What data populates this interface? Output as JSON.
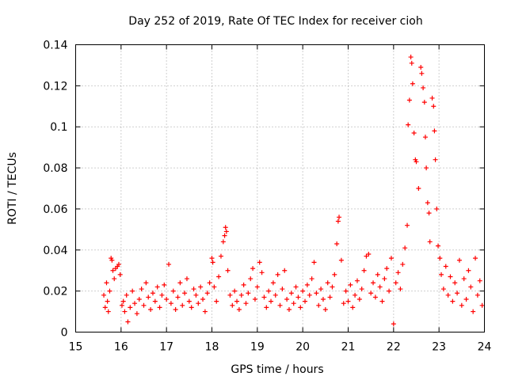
{
  "chart_data": {
    "type": "scatter",
    "title": "Day 252 of 2019, Rate Of TEC Index for receiver cioh",
    "xlabel": "GPS time / hours",
    "ylabel": "ROTI / TECUs",
    "xlim": [
      15,
      24
    ],
    "ylim": [
      0,
      0.14
    ],
    "x_ticks": [
      15,
      16,
      17,
      18,
      19,
      20,
      21,
      22,
      23,
      24
    ],
    "x_tick_labels": [
      "15",
      "16",
      "17",
      "18",
      "19",
      "20",
      "21",
      "22",
      "23",
      "24"
    ],
    "y_ticks": [
      0,
      0.02,
      0.04,
      0.06,
      0.08,
      0.1,
      0.12,
      0.14
    ],
    "y_tick_labels": [
      "0",
      "0.02",
      "0.04",
      "0.06",
      "0.08",
      "0.1",
      "0.12",
      "0.14"
    ],
    "grid": true,
    "marker": "+",
    "series_color": "#ff0000",
    "series": [
      {
        "name": "ROTI",
        "points": [
          [
            15.62,
            0.018
          ],
          [
            15.65,
            0.012
          ],
          [
            15.68,
            0.024
          ],
          [
            15.7,
            0.015
          ],
          [
            15.72,
            0.01
          ],
          [
            15.75,
            0.02
          ],
          [
            15.78,
            0.036
          ],
          [
            15.8,
            0.035
          ],
          [
            15.82,
            0.03
          ],
          [
            15.85,
            0.026
          ],
          [
            15.88,
            0.031
          ],
          [
            15.92,
            0.032
          ],
          [
            15.95,
            0.033
          ],
          [
            15.98,
            0.028
          ],
          [
            16.02,
            0.013
          ],
          [
            16.05,
            0.015
          ],
          [
            16.08,
            0.01
          ],
          [
            16.12,
            0.018
          ],
          [
            16.15,
            0.005
          ],
          [
            16.2,
            0.012
          ],
          [
            16.25,
            0.02
          ],
          [
            16.3,
            0.014
          ],
          [
            16.35,
            0.009
          ],
          [
            16.4,
            0.016
          ],
          [
            16.45,
            0.021
          ],
          [
            16.5,
            0.013
          ],
          [
            16.55,
            0.024
          ],
          [
            16.6,
            0.017
          ],
          [
            16.65,
            0.011
          ],
          [
            16.7,
            0.019
          ],
          [
            16.75,
            0.015
          ],
          [
            16.8,
            0.022
          ],
          [
            16.85,
            0.012
          ],
          [
            16.9,
            0.018
          ],
          [
            16.95,
            0.023
          ],
          [
            17.0,
            0.016
          ],
          [
            17.05,
            0.033
          ],
          [
            17.1,
            0.014
          ],
          [
            17.15,
            0.02
          ],
          [
            17.2,
            0.011
          ],
          [
            17.25,
            0.017
          ],
          [
            17.3,
            0.024
          ],
          [
            17.35,
            0.013
          ],
          [
            17.4,
            0.019
          ],
          [
            17.45,
            0.026
          ],
          [
            17.5,
            0.015
          ],
          [
            17.55,
            0.012
          ],
          [
            17.6,
            0.021
          ],
          [
            17.65,
            0.018
          ],
          [
            17.7,
            0.014
          ],
          [
            17.75,
            0.022
          ],
          [
            17.8,
            0.016
          ],
          [
            17.85,
            0.01
          ],
          [
            17.9,
            0.019
          ],
          [
            17.95,
            0.024
          ],
          [
            18.0,
            0.036
          ],
          [
            18.02,
            0.034
          ],
          [
            18.05,
            0.022
          ],
          [
            18.1,
            0.015
          ],
          [
            18.15,
            0.027
          ],
          [
            18.2,
            0.037
          ],
          [
            18.25,
            0.044
          ],
          [
            18.28,
            0.047
          ],
          [
            18.3,
            0.051
          ],
          [
            18.32,
            0.049
          ],
          [
            18.35,
            0.03
          ],
          [
            18.4,
            0.018
          ],
          [
            18.45,
            0.013
          ],
          [
            18.5,
            0.02
          ],
          [
            18.55,
            0.015
          ],
          [
            18.6,
            0.011
          ],
          [
            18.65,
            0.018
          ],
          [
            18.7,
            0.023
          ],
          [
            18.75,
            0.014
          ],
          [
            18.8,
            0.019
          ],
          [
            18.85,
            0.026
          ],
          [
            18.9,
            0.031
          ],
          [
            18.95,
            0.016
          ],
          [
            19.0,
            0.022
          ],
          [
            19.05,
            0.034
          ],
          [
            19.1,
            0.029
          ],
          [
            19.15,
            0.017
          ],
          [
            19.2,
            0.012
          ],
          [
            19.25,
            0.02
          ],
          [
            19.3,
            0.015
          ],
          [
            19.35,
            0.024
          ],
          [
            19.4,
            0.018
          ],
          [
            19.45,
            0.028
          ],
          [
            19.5,
            0.013
          ],
          [
            19.55,
            0.021
          ],
          [
            19.6,
            0.03
          ],
          [
            19.65,
            0.016
          ],
          [
            19.7,
            0.011
          ],
          [
            19.75,
            0.019
          ],
          [
            19.8,
            0.014
          ],
          [
            19.85,
            0.022
          ],
          [
            19.9,
            0.017
          ],
          [
            19.95,
            0.012
          ],
          [
            20.0,
            0.02
          ],
          [
            20.05,
            0.015
          ],
          [
            20.1,
            0.023
          ],
          [
            20.15,
            0.018
          ],
          [
            20.2,
            0.026
          ],
          [
            20.25,
            0.034
          ],
          [
            20.3,
            0.019
          ],
          [
            20.35,
            0.013
          ],
          [
            20.4,
            0.021
          ],
          [
            20.45,
            0.016
          ],
          [
            20.5,
            0.011
          ],
          [
            20.55,
            0.024
          ],
          [
            20.6,
            0.017
          ],
          [
            20.65,
            0.022
          ],
          [
            20.7,
            0.028
          ],
          [
            20.75,
            0.043
          ],
          [
            20.78,
            0.054
          ],
          [
            20.8,
            0.056
          ],
          [
            20.85,
            0.035
          ],
          [
            20.9,
            0.014
          ],
          [
            20.95,
            0.02
          ],
          [
            21.0,
            0.015
          ],
          [
            21.05,
            0.023
          ],
          [
            21.1,
            0.012
          ],
          [
            21.15,
            0.018
          ],
          [
            21.2,
            0.025
          ],
          [
            21.25,
            0.016
          ],
          [
            21.3,
            0.021
          ],
          [
            21.35,
            0.03
          ],
          [
            21.4,
            0.037
          ],
          [
            21.45,
            0.038
          ],
          [
            21.5,
            0.019
          ],
          [
            21.55,
            0.024
          ],
          [
            21.6,
            0.017
          ],
          [
            21.65,
            0.028
          ],
          [
            21.7,
            0.022
          ],
          [
            21.75,
            0.015
          ],
          [
            21.8,
            0.026
          ],
          [
            21.85,
            0.031
          ],
          [
            21.9,
            0.02
          ],
          [
            21.95,
            0.036
          ],
          [
            22.0,
            0.004
          ],
          [
            22.05,
            0.024
          ],
          [
            22.1,
            0.029
          ],
          [
            22.15,
            0.021
          ],
          [
            22.2,
            0.033
          ],
          [
            22.25,
            0.041
          ],
          [
            22.3,
            0.052
          ],
          [
            22.32,
            0.101
          ],
          [
            22.35,
            0.113
          ],
          [
            22.38,
            0.134
          ],
          [
            22.4,
            0.131
          ],
          [
            22.42,
            0.121
          ],
          [
            22.45,
            0.097
          ],
          [
            22.48,
            0.084
          ],
          [
            22.5,
            0.083
          ],
          [
            22.55,
            0.07
          ],
          [
            22.6,
            0.129
          ],
          [
            22.62,
            0.126
          ],
          [
            22.65,
            0.119
          ],
          [
            22.68,
            0.112
          ],
          [
            22.7,
            0.095
          ],
          [
            22.72,
            0.08
          ],
          [
            22.75,
            0.063
          ],
          [
            22.78,
            0.058
          ],
          [
            22.8,
            0.044
          ],
          [
            22.85,
            0.114
          ],
          [
            22.88,
            0.11
          ],
          [
            22.9,
            0.098
          ],
          [
            22.92,
            0.084
          ],
          [
            22.95,
            0.06
          ],
          [
            22.98,
            0.042
          ],
          [
            23.02,
            0.036
          ],
          [
            23.05,
            0.028
          ],
          [
            23.1,
            0.021
          ],
          [
            23.15,
            0.032
          ],
          [
            23.2,
            0.018
          ],
          [
            23.25,
            0.027
          ],
          [
            23.3,
            0.015
          ],
          [
            23.35,
            0.024
          ],
          [
            23.4,
            0.019
          ],
          [
            23.45,
            0.035
          ],
          [
            23.5,
            0.013
          ],
          [
            23.55,
            0.026
          ],
          [
            23.6,
            0.016
          ],
          [
            23.65,
            0.03
          ],
          [
            23.7,
            0.022
          ],
          [
            23.75,
            0.01
          ],
          [
            23.8,
            0.036
          ],
          [
            23.85,
            0.018
          ],
          [
            23.9,
            0.025
          ],
          [
            23.95,
            0.013
          ]
        ]
      }
    ]
  }
}
